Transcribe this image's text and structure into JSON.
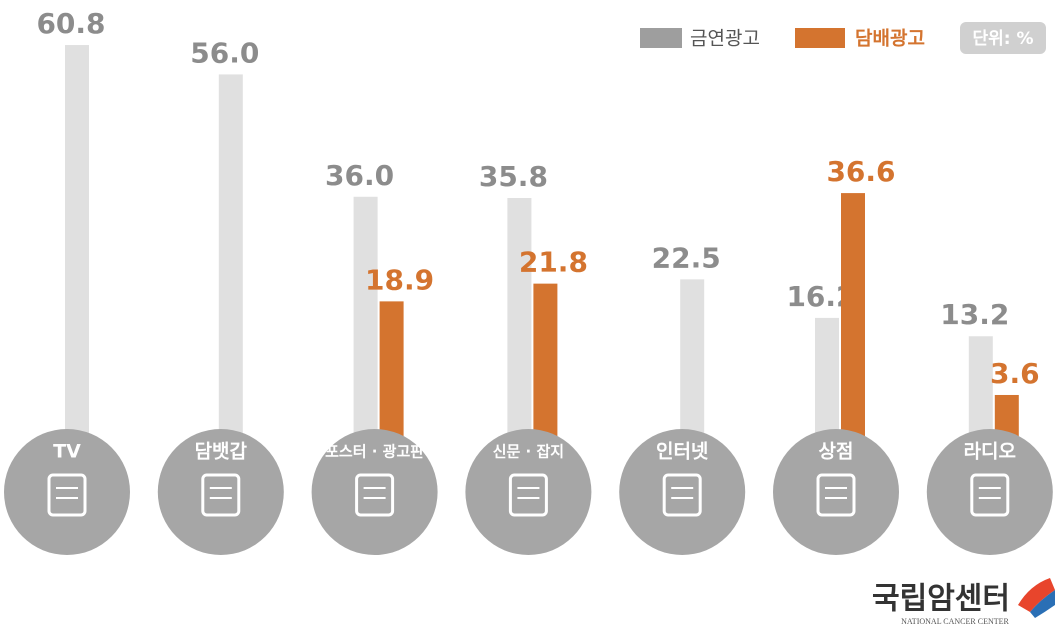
{
  "chart_data": {
    "type": "bar",
    "unit": "단위: %",
    "categories": [
      "TV",
      "담뱃갑",
      "포스터 · 광고판",
      "신문 · 잡지",
      "인터넷",
      "상점",
      "라디오"
    ],
    "series": [
      {
        "name": "금연광고",
        "color": "#e0e0e0",
        "values": [
          60.8,
          56.0,
          36.0,
          35.8,
          22.5,
          16.2,
          13.2
        ],
        "value_labels": [
          "60.8",
          "56.0",
          "36.0",
          "35.8",
          "22.5",
          "16.2",
          "13.2"
        ]
      },
      {
        "name": "담배광고",
        "color": "#d4742f",
        "values": [
          null,
          null,
          18.9,
          21.8,
          null,
          36.6,
          3.6
        ],
        "value_labels": [
          null,
          null,
          "18.9",
          "21.8",
          null,
          "36.6",
          "3.6"
        ]
      }
    ],
    "ylim": [
      0,
      68
    ],
    "logo": {
      "name": "국립암센터",
      "subtitle": "NATIONAL CANCER CENTER"
    }
  }
}
